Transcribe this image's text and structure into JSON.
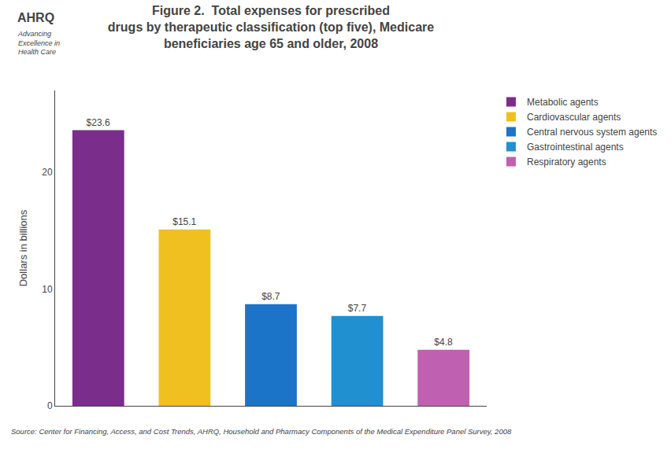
{
  "chart_data": {
    "type": "bar",
    "title": "Figure 2.  Total expenses for prescribed\ndrugs by therapeutic classification (top five), Medicare\nbeneficiaries age 65 and older, 2008",
    "categories": [
      "Metabolic agents",
      "Cardiovascular agents",
      "Central nervous system agents",
      "Gastrointestinal agents",
      "Respiratory agents"
    ],
    "values": [
      23.6,
      15.1,
      8.7,
      7.7,
      4.8
    ],
    "value_labels": [
      "$23.6",
      "$15.1",
      "$8.7",
      "$7.7",
      "$4.8"
    ],
    "data_labels": true,
    "colors": [
      "#7B2D8B",
      "#F0C020",
      "#1C74C8",
      "#2090D0",
      "#C060B0"
    ],
    "ylabel": "Dollars in billions",
    "ylim": [
      0,
      27
    ],
    "yticks": [
      0,
      10,
      20
    ],
    "grid": false,
    "legend": "right",
    "tick_labels": "y",
    "annotations": [
      "AHRQ",
      "Advancing\nExcellence in\nHealth Care",
      "Source: Center for Financing, Access, and Cost Trends, AHRQ, Household and Pharmacy Components of the Medical Expenditure Panel Survey, 2008"
    ]
  }
}
